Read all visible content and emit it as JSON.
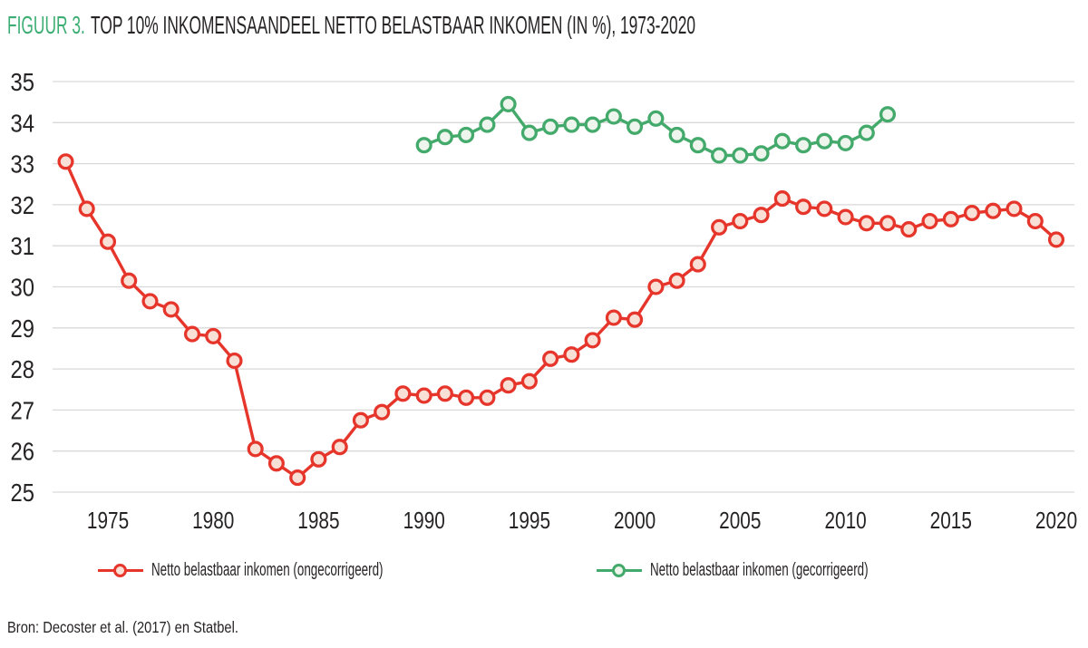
{
  "title": {
    "prefix": "FIGUUR 3.",
    "text": "TOP 10% INKOMENSAANDEEL NETTO BELASTBAAR INKOMEN (IN %), 1973-2020"
  },
  "source": "Bron: Decoster et al. (2017) en Statbel.",
  "colors": {
    "accent_green": "#3dae73",
    "text": "#262324",
    "grid": "#d9d9d9",
    "series_red": "#e6352b",
    "series_red_marker_fill": "#f9e0d7",
    "series_green": "#44aa6c",
    "series_green_marker_fill": "#edf5ec"
  },
  "chart_data": {
    "type": "line",
    "title": "TOP 10% INKOMENSAANDEEL NETTO BELASTBAAR INKOMEN (IN %), 1973-2020",
    "xlabel": "",
    "ylabel": "",
    "xlim": [
      1973,
      2020
    ],
    "ylim": [
      25,
      35
    ],
    "y_ticks": [
      25,
      26,
      27,
      28,
      29,
      30,
      31,
      32,
      33,
      34,
      35
    ],
    "x_ticks": [
      1975,
      1980,
      1985,
      1990,
      1995,
      2000,
      2005,
      2010,
      2015,
      2020
    ],
    "grid": "horizontal",
    "legend_position": "bottom",
    "series": [
      {
        "id": "ongecorrigeerd",
        "name": "Netto belastbaar inkomen (ongecorrigeerd)",
        "color": "#e6352b",
        "marker_fill": "#f9e0d7",
        "x": [
          1973,
          1974,
          1975,
          1976,
          1977,
          1978,
          1979,
          1980,
          1981,
          1982,
          1983,
          1984,
          1985,
          1986,
          1987,
          1988,
          1989,
          1990,
          1991,
          1992,
          1993,
          1994,
          1995,
          1996,
          1997,
          1998,
          1999,
          2000,
          2001,
          2002,
          2003,
          2004,
          2005,
          2006,
          2007,
          2008,
          2009,
          2010,
          2011,
          2012,
          2013,
          2014,
          2015,
          2016,
          2017,
          2018,
          2019,
          2020
        ],
        "values": [
          33.05,
          31.9,
          31.1,
          30.15,
          29.65,
          29.45,
          28.85,
          28.8,
          28.2,
          26.05,
          25.7,
          25.35,
          25.8,
          26.1,
          26.75,
          26.95,
          27.4,
          27.35,
          27.4,
          27.3,
          27.3,
          27.6,
          27.7,
          28.25,
          28.35,
          28.7,
          29.25,
          29.2,
          30.0,
          30.15,
          30.55,
          31.45,
          31.6,
          31.75,
          32.15,
          31.95,
          31.9,
          31.7,
          31.55,
          31.55,
          31.4,
          31.6,
          31.65,
          31.8,
          31.85,
          31.9,
          31.6,
          31.15
        ]
      },
      {
        "id": "gecorrigeerd",
        "name": "Netto belastbaar inkomen (gecorrigeerd)",
        "color": "#44aa6c",
        "marker_fill": "#edf5ec",
        "x": [
          1990,
          1991,
          1992,
          1993,
          1994,
          1995,
          1996,
          1997,
          1998,
          1999,
          2000,
          2001,
          2002,
          2003,
          2004,
          2005,
          2006,
          2007,
          2008,
          2009,
          2010,
          2011,
          2012
        ],
        "values": [
          33.45,
          33.65,
          33.7,
          33.95,
          34.45,
          33.75,
          33.9,
          33.95,
          33.95,
          34.15,
          33.9,
          34.1,
          33.7,
          33.45,
          33.2,
          33.2,
          33.25,
          33.55,
          33.45,
          33.55,
          33.5,
          33.75,
          34.2
        ]
      }
    ]
  }
}
